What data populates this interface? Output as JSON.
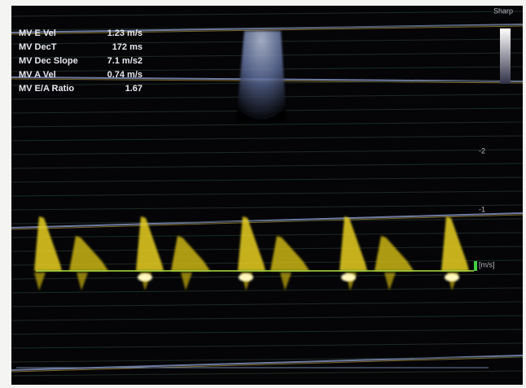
{
  "measurements": [
    {
      "label": "MV E Vel",
      "value": "1.23 m/s"
    },
    {
      "label": "MV DecT",
      "value": "172 ms"
    },
    {
      "label": "MV Dec Slope",
      "value": "7.1 m/s2"
    },
    {
      "label": "MV A Vel",
      "value": "0.74 m/s"
    },
    {
      "label": "MV E/A Ratio",
      "value": "1.67"
    }
  ],
  "map_label": "Sharp",
  "scale": {
    "labels": [
      "-2",
      "-1"
    ],
    "unit": "[m/s]"
  }
}
